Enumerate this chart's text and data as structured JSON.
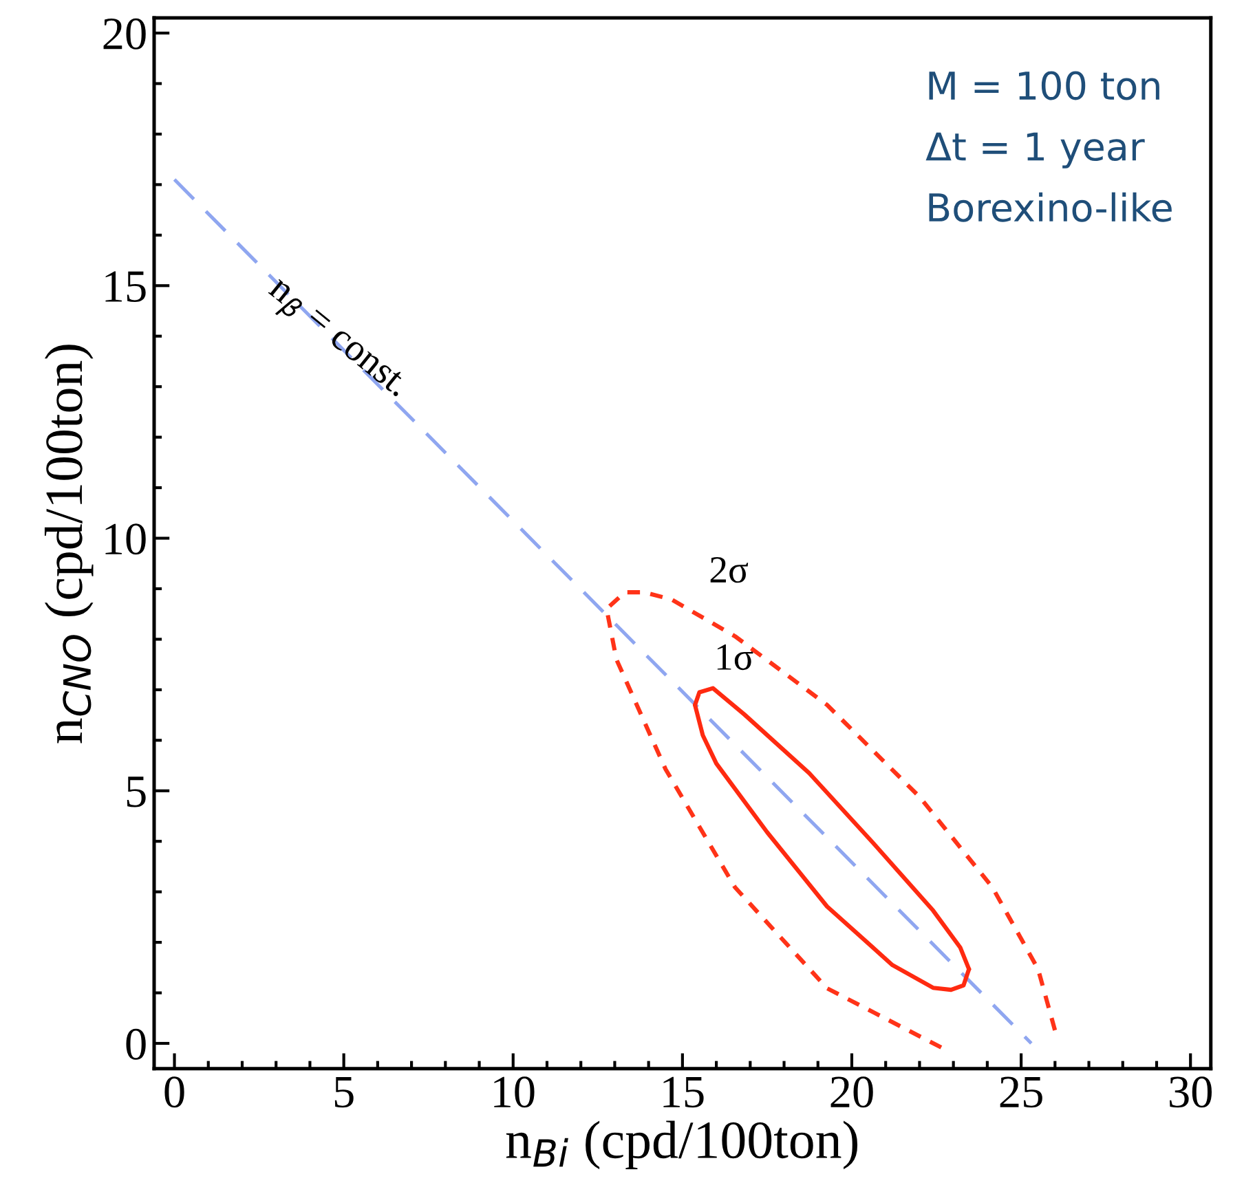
{
  "chart_data": {
    "type": "line",
    "xlabel": "n$_{Bi}$ (cpd/100ton)",
    "ylabel": "n$_{CNO}$ (cpd/100ton)",
    "xlim": [
      -0.6,
      30.6
    ],
    "ylim": [
      -0.5,
      20.3
    ],
    "xticks": [
      0,
      5,
      10,
      15,
      20,
      25,
      30
    ],
    "yticks": [
      0,
      5,
      10,
      15,
      20
    ],
    "grid": false,
    "legend": false,
    "series": [
      {
        "color": "#8fa6f0",
        "line_style": "dashed",
        "x": [
          0,
          25.3
        ],
        "values": [
          17.1,
          0
        ]
      },
      {
        "color": "#ff3318",
        "line_style": "dotted",
        "x": [
          22.64,
          19.27,
          16.55,
          14.5,
          13.05,
          12.76,
          13.3,
          13.86,
          14.67,
          16.55,
          19.27,
          22.0,
          24.15,
          25.5,
          26.06
        ],
        "values": [
          -0.08,
          1.09,
          3.09,
          5.43,
          7.6,
          8.6,
          8.93,
          8.93,
          8.79,
          8.06,
          6.7,
          4.88,
          3.09,
          1.47,
          0.11
        ]
      },
      {
        "color": "#ff2a10",
        "line_style": "solid",
        "x": [
          15.37,
          15.5,
          15.9,
          16.83,
          18.74,
          20.6,
          22.4,
          23.2,
          23.46
        ],
        "values": [
          6.7,
          6.95,
          7.03,
          6.51,
          5.35,
          3.99,
          2.63,
          1.9,
          1.47
        ]
      },
      {
        "color": "#ff2a10",
        "line_style": "solid",
        "x": [
          15.37,
          15.6,
          16.0,
          17.5,
          19.27,
          21.2,
          22.4,
          22.93,
          23.3,
          23.46
        ],
        "values": [
          6.7,
          6.1,
          5.54,
          4.18,
          2.71,
          1.55,
          1.1,
          1.06,
          1.15,
          1.47
        ]
      }
    ],
    "annotations": [
      "2σ",
      "1σ",
      "n$_{β}$ = const.",
      "M = 100 ton",
      "Δt = 1 year",
      "Borexino-like"
    ]
  }
}
